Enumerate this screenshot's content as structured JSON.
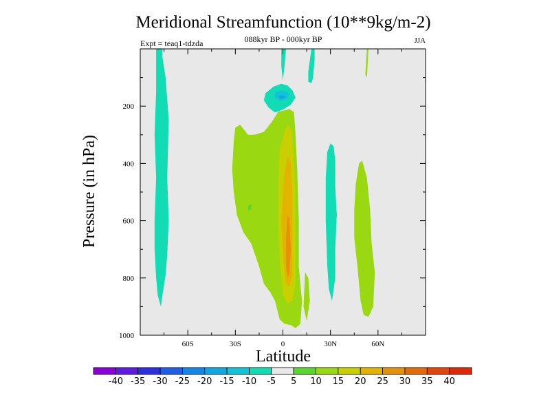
{
  "chart_data": {
    "type": "heatmap",
    "title": "Meridional Streamfunction (10**9kg/m-2)",
    "subtitle": "088kyr BP - 000kyr BP",
    "left_annotation": "Expt = teaq1-tdzda",
    "right_annotation": "JJA",
    "xlabel": "Latitude",
    "ylabel": "Pressure (in hPa)",
    "xlim": [
      -90,
      90
    ],
    "ylim": [
      1000,
      0
    ],
    "x_ticks": [
      {
        "value": -60,
        "label": "60S"
      },
      {
        "value": -30,
        "label": "30S"
      },
      {
        "value": 0,
        "label": "0"
      },
      {
        "value": 30,
        "label": "30N"
      },
      {
        "value": 60,
        "label": "60N"
      }
    ],
    "y_ticks": [
      {
        "value": 200,
        "label": "200"
      },
      {
        "value": 400,
        "label": "400"
      },
      {
        "value": 600,
        "label": "600"
      },
      {
        "value": 800,
        "label": "800"
      },
      {
        "value": 1000,
        "label": "1000"
      }
    ],
    "colorbar": {
      "labels": [
        "-40",
        "-35",
        "-30",
        "-25",
        "-20",
        "-15",
        "-10",
        "-5",
        "5",
        "10",
        "15",
        "20",
        "25",
        "30",
        "35",
        "40"
      ],
      "colors": [
        "#8a00d8",
        "#5e1ce0",
        "#2b2fdc",
        "#1f5ee6",
        "#1388e8",
        "#10a8e0",
        "#10c4d8",
        "#12dcb4",
        "#e8e8e8",
        "#5ad62e",
        "#9ad812",
        "#c8d000",
        "#e2b400",
        "#e4920a",
        "#e46a0a",
        "#e2460c",
        "#dc2a08"
      ],
      "background_color": "#e8e8e8"
    },
    "regions": [
      {
        "level": -10,
        "points": [
          [
            -80,
            0
          ],
          [
            -76,
            0
          ],
          [
            -76,
            30
          ],
          [
            -74,
            100
          ],
          [
            -72,
            250
          ],
          [
            -73,
            450
          ],
          [
            -72,
            600
          ],
          [
            -73,
            720
          ],
          [
            -74,
            790
          ],
          [
            -76,
            860
          ],
          [
            -77,
            900
          ],
          [
            -79,
            860
          ],
          [
            -80,
            800
          ],
          [
            -81,
            700
          ],
          [
            -81,
            600
          ],
          [
            -80,
            450
          ],
          [
            -81,
            300
          ],
          [
            -80,
            150
          ]
        ]
      },
      {
        "level": -10,
        "points": [
          [
            -11,
            155
          ],
          [
            -6,
            132
          ],
          [
            -1,
            122
          ],
          [
            3,
            128
          ],
          [
            6,
            145
          ],
          [
            8,
            170
          ],
          [
            5,
            195
          ],
          [
            0,
            212
          ],
          [
            -5,
            222
          ],
          [
            -9,
            205
          ],
          [
            -12,
            180
          ]
        ]
      },
      {
        "level": -15,
        "points": [
          [
            -5,
            152
          ],
          [
            -1,
            145
          ],
          [
            3,
            150
          ],
          [
            4,
            163
          ],
          [
            2,
            176
          ],
          [
            -2,
            181
          ],
          [
            -5,
            171
          ]
        ]
      },
      {
        "level": -20,
        "points": [
          [
            -3,
            166
          ],
          [
            0,
            162
          ],
          [
            2,
            168
          ],
          [
            0,
            174
          ],
          [
            -2,
            173
          ]
        ]
      },
      {
        "level": -10,
        "points": [
          [
            -1,
            0
          ],
          [
            2,
            0
          ],
          [
            1,
            60
          ],
          [
            0,
            110
          ],
          [
            -1,
            60
          ]
        ]
      },
      {
        "level": -10,
        "points": [
          [
            18,
            0
          ],
          [
            20,
            0
          ],
          [
            20,
            40
          ],
          [
            19,
            100
          ],
          [
            18,
            120
          ],
          [
            16,
            115
          ],
          [
            16,
            80
          ],
          [
            17,
            40
          ]
        ]
      },
      {
        "level": -10,
        "points": [
          [
            28,
            360
          ],
          [
            30,
            330
          ],
          [
            32,
            340
          ],
          [
            33,
            390
          ],
          [
            33,
            480
          ],
          [
            34,
            580
          ],
          [
            33,
            700
          ],
          [
            33,
            800
          ],
          [
            31,
            880
          ],
          [
            29,
            840
          ],
          [
            28,
            760
          ],
          [
            27,
            600
          ],
          [
            27,
            450
          ]
        ]
      },
      {
        "level": 10,
        "points": [
          [
            53,
            0
          ],
          [
            54,
            0
          ],
          [
            53,
            100
          ],
          [
            52,
            90
          ]
        ]
      },
      {
        "level": 10,
        "points": [
          [
            -32,
            420
          ],
          [
            -31,
            320
          ],
          [
            -30,
            275
          ],
          [
            -27,
            265
          ],
          [
            -22,
            300
          ],
          [
            -18,
            300
          ],
          [
            -12,
            290
          ],
          [
            -7,
            255
          ],
          [
            -3,
            220
          ],
          [
            1,
            215
          ],
          [
            4,
            210
          ],
          [
            7,
            220
          ],
          [
            8,
            300
          ],
          [
            9,
            420
          ],
          [
            10,
            600
          ],
          [
            10,
            760
          ],
          [
            12,
            880
          ],
          [
            11,
            960
          ],
          [
            8,
            975
          ],
          [
            5,
            965
          ],
          [
            1,
            960
          ],
          [
            -2,
            945
          ],
          [
            -5,
            880
          ],
          [
            -8,
            850
          ],
          [
            -12,
            820
          ],
          [
            -15,
            760
          ],
          [
            -20,
            680
          ],
          [
            -25,
            640
          ],
          [
            -29,
            580
          ],
          [
            -31,
            500
          ]
        ]
      },
      {
        "level": 15,
        "points": [
          [
            -3,
            460
          ],
          [
            -2,
            350
          ],
          [
            1,
            290
          ],
          [
            3,
            265
          ],
          [
            6,
            290
          ],
          [
            7,
            380
          ],
          [
            8,
            520
          ],
          [
            8,
            700
          ],
          [
            8,
            820
          ],
          [
            6,
            880
          ],
          [
            3,
            890
          ],
          [
            0,
            860
          ],
          [
            -2,
            740
          ],
          [
            -3,
            600
          ]
        ]
      },
      {
        "level": 20,
        "points": [
          [
            0,
            510
          ],
          [
            1,
            430
          ],
          [
            3,
            370
          ],
          [
            5,
            400
          ],
          [
            6,
            500
          ],
          [
            6,
            650
          ],
          [
            6,
            790
          ],
          [
            4,
            830
          ],
          [
            2,
            820
          ],
          [
            0,
            720
          ],
          [
            -1,
            600
          ]
        ]
      },
      {
        "level": 25,
        "points": [
          [
            2,
            660
          ],
          [
            3,
            580
          ],
          [
            4,
            590
          ],
          [
            5,
            700
          ],
          [
            4,
            790
          ],
          [
            3,
            795
          ],
          [
            2,
            760
          ]
        ]
      },
      {
        "level": 10,
        "points": [
          [
            45,
            560
          ],
          [
            46,
            470
          ],
          [
            48,
            400
          ],
          [
            50,
            390
          ],
          [
            53,
            450
          ],
          [
            55,
            560
          ],
          [
            56,
            680
          ],
          [
            58,
            780
          ],
          [
            57,
            900
          ],
          [
            54,
            935
          ],
          [
            51,
            930
          ],
          [
            49,
            880
          ],
          [
            47,
            760
          ],
          [
            45,
            660
          ]
        ]
      },
      {
        "level": 10,
        "points": [
          [
            14,
            780
          ],
          [
            16,
            800
          ],
          [
            17,
            880
          ],
          [
            15,
            950
          ],
          [
            13,
            900
          ]
        ]
      },
      {
        "level": 5,
        "points": [
          [
            -22,
            550
          ],
          [
            -20,
            540
          ],
          [
            -20,
            560
          ],
          [
            -22,
            565
          ]
        ]
      }
    ]
  }
}
